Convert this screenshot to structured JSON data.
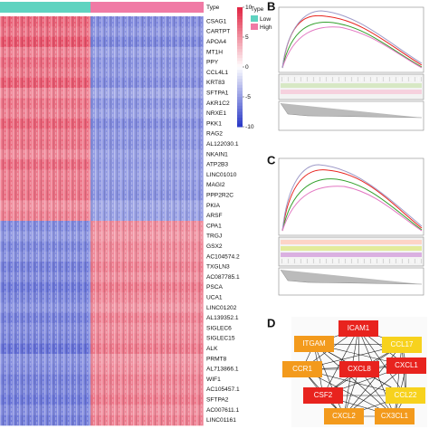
{
  "heatmap": {
    "type_label": "Type",
    "groups": [
      {
        "name": "Low",
        "color": "#5fd3c0"
      },
      {
        "name": "High",
        "color": "#f07aa5"
      }
    ],
    "scale_ticks": [
      10,
      5,
      0,
      -5,
      -10
    ],
    "genes": [
      "CSAG1",
      "CARTPT",
      "APOA4",
      "MT1H",
      "PPY",
      "CCL4L1",
      "KRT83",
      "SFTPA1",
      "AKR1C2",
      "NRXE1",
      "PKK1",
      "RAG2",
      "AL122030.1",
      "NKAIN1",
      "ATP2B3",
      "LINC01010",
      "MAGI2",
      "PPP2R2C",
      "PKIA",
      "ARSF",
      "CPA1",
      "TRGJ",
      "GSX2",
      "AC104574.2",
      "TXGLN3",
      "AC087785.1",
      "PSCA",
      "UCA1",
      "LINC01202",
      "AL139352.1",
      "SIGLEC6",
      "SIGLEC15",
      "ALK",
      "PRMT8",
      "AL713866.1",
      "WIF1",
      "AC105457.1",
      "SFTPA2",
      "AC007611.1",
      "LINC01161"
    ],
    "values": [
      [
        2.2,
        -1.8
      ],
      [
        2.0,
        -1.6
      ],
      [
        2.4,
        -1.9
      ],
      [
        1.8,
        -1.5
      ],
      [
        2.1,
        -1.7
      ],
      [
        1.9,
        -1.6
      ],
      [
        2.3,
        -1.8
      ],
      [
        1.7,
        -1.4
      ],
      [
        2.0,
        -1.7
      ],
      [
        1.8,
        -1.5
      ],
      [
        2.2,
        -1.8
      ],
      [
        1.9,
        -1.6
      ],
      [
        2.0,
        -1.7
      ],
      [
        1.7,
        -1.5
      ],
      [
        2.1,
        -1.6
      ],
      [
        1.8,
        -1.5
      ],
      [
        1.9,
        -1.6
      ],
      [
        2.0,
        -1.7
      ],
      [
        1.6,
        -1.4
      ],
      [
        1.8,
        -1.5
      ],
      [
        -1.8,
        1.6
      ],
      [
        -1.6,
        1.5
      ],
      [
        -1.9,
        1.7
      ],
      [
        -1.7,
        1.6
      ],
      [
        -2.0,
        1.8
      ],
      [
        -1.8,
        1.6
      ],
      [
        -2.1,
        1.9
      ],
      [
        -1.9,
        1.7
      ],
      [
        -1.7,
        1.5
      ],
      [
        -2.0,
        1.8
      ],
      [
        -1.8,
        1.6
      ],
      [
        -1.9,
        1.7
      ],
      [
        -2.2,
        1.9
      ],
      [
        -1.7,
        1.5
      ],
      [
        -1.8,
        1.6
      ],
      [
        -2.0,
        1.8
      ],
      [
        -1.9,
        1.7
      ],
      [
        -2.1,
        1.9
      ],
      [
        -1.8,
        1.6
      ],
      [
        -2.0,
        1.8
      ]
    ]
  },
  "panels": {
    "b": "B",
    "c": "C",
    "d": "D"
  },
  "network": {
    "nodes": [
      {
        "label": "ICAM1",
        "color": "#e8231e"
      },
      {
        "label": "CCL17",
        "color": "#f7d21d"
      },
      {
        "label": "ITGAM",
        "color": "#f39a1c"
      },
      {
        "label": "CCR1",
        "color": "#f39a1c"
      },
      {
        "label": "CXCL8",
        "color": "#e8231e"
      },
      {
        "label": "CXCL1",
        "color": "#e8231e"
      },
      {
        "label": "CSF2",
        "color": "#e8231e"
      },
      {
        "label": "CCL22",
        "color": "#f7d21d"
      },
      {
        "label": "CXCL2",
        "color": "#f39a1c"
      },
      {
        "label": "CX3CL1",
        "color": "#f39a1c"
      }
    ]
  }
}
